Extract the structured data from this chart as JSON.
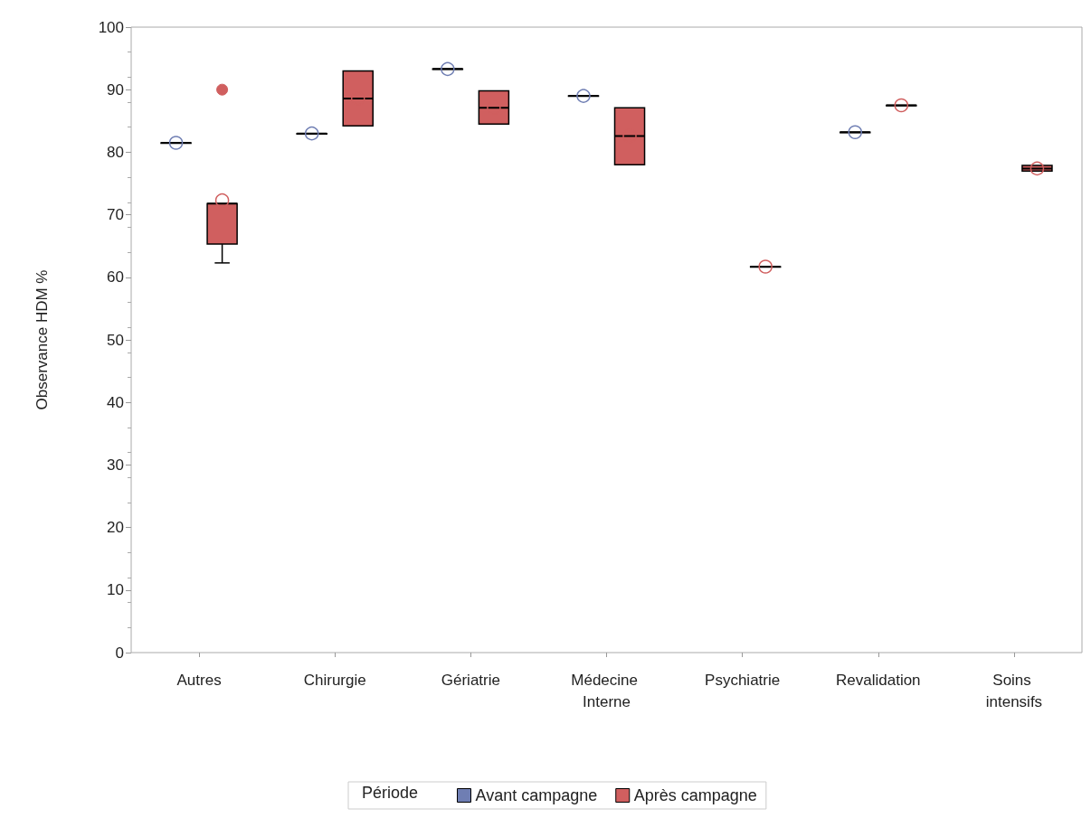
{
  "chart_data": {
    "type": "box",
    "categories": [
      "Autres",
      "Chirurgie",
      "Gériatrie",
      "Médecine Interne",
      "Psychiatrie",
      "Revalidation",
      "Soins intensifs"
    ],
    "ylabel": "Observance HDM %",
    "legend_title": "Période",
    "legend": "bottom",
    "grid": false,
    "ylim": [
      0,
      100
    ],
    "yticks": [
      0,
      10,
      20,
      30,
      40,
      50,
      60,
      70,
      80,
      90,
      100
    ],
    "series": [
      {
        "name": "Avant campagne",
        "color": "#6f7eb3",
        "boxes": [
          {
            "low": 81.5,
            "q1": 81.5,
            "median": 81.5,
            "q3": 81.5,
            "high": 81.5,
            "mean": 81.5
          },
          {
            "low": 83,
            "q1": 83,
            "median": 83,
            "q3": 83,
            "high": 83,
            "mean": 83
          },
          {
            "low": 93.3,
            "q1": 93.3,
            "median": 93.3,
            "q3": 93.3,
            "high": 93.3,
            "mean": 93.3
          },
          {
            "low": 89,
            "q1": 89,
            "median": 89,
            "q3": 89,
            "high": 89,
            "mean": 89
          },
          null,
          {
            "low": 83.2,
            "q1": 83.2,
            "median": 83.2,
            "q3": 83.2,
            "high": 83.2,
            "mean": 83.2
          },
          null
        ]
      },
      {
        "name": "Après campagne",
        "color": "#d05f5f",
        "boxes": [
          {
            "low": 62.3,
            "q1": 65.3,
            "median": 71.8,
            "q3": 71.8,
            "high": 71.8,
            "mean": 72.3,
            "outliers": [
              90
            ]
          },
          {
            "low": 84.2,
            "q1": 84.2,
            "median": 88.6,
            "q3": 93,
            "high": 93,
            "mean": 88.6
          },
          {
            "low": 84.5,
            "q1": 84.5,
            "median": 87.1,
            "q3": 89.8,
            "high": 89.8,
            "mean": 87.1
          },
          {
            "low": 78,
            "q1": 78,
            "median": 82.6,
            "q3": 87.1,
            "high": 87.1,
            "mean": 82.6
          },
          {
            "low": 61.7,
            "q1": 61.7,
            "median": 61.7,
            "q3": 61.7,
            "high": 61.7,
            "mean": 61.7
          },
          {
            "low": 87.5,
            "q1": 87.5,
            "median": 87.5,
            "q3": 87.5,
            "high": 87.5,
            "mean": 87.5
          },
          {
            "low": 77,
            "q1": 77,
            "median": 77.4,
            "q3": 77.9,
            "high": 77.9,
            "mean": 77.4
          }
        ]
      }
    ]
  }
}
